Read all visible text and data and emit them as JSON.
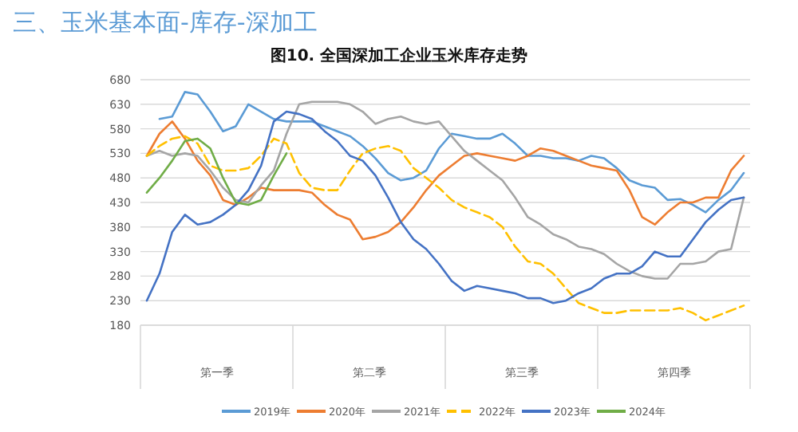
{
  "chart_data": {
    "type": "line",
    "title": "三、玉米基本面-库存-深加工",
    "subtitle": "图10. 全国深加工企业玉米库存走势",
    "categories": [
      null,
      null,
      null,
      null,
      null,
      null,
      null,
      null,
      null,
      null,
      null,
      null,
      null,
      null,
      null,
      null,
      null,
      null,
      null,
      null,
      null,
      null,
      null,
      null,
      null,
      null,
      null,
      null,
      null,
      null,
      null,
      null,
      null,
      null,
      null,
      null,
      null,
      null,
      null,
      null,
      null,
      null,
      null,
      null,
      null,
      null,
      null,
      null
    ],
    "series": [
      {
        "name": "2019年",
        "color": "#5b9bd5",
        "line_style": "solid",
        "values": [
          null,
          600,
          605,
          655,
          650,
          615,
          575,
          585,
          630,
          615,
          600,
          595,
          595,
          595,
          585,
          575,
          565,
          545,
          520,
          490,
          475,
          480,
          495,
          540,
          570,
          565,
          560,
          560,
          570,
          550,
          525,
          525,
          520,
          520,
          515,
          525,
          520,
          500,
          475,
          465,
          460,
          435,
          437,
          425,
          410,
          435,
          455,
          490
        ]
      },
      {
        "name": "2020年",
        "color": "#ed7d31",
        "line_style": "solid",
        "values": [
          525,
          570,
          595,
          560,
          515,
          485,
          435,
          425,
          440,
          460,
          455,
          455,
          455,
          450,
          425,
          405,
          395,
          355,
          360,
          370,
          390,
          420,
          455,
          485,
          505,
          525,
          530,
          525,
          520,
          515,
          525,
          540,
          535,
          525,
          515,
          505,
          500,
          495,
          455,
          400,
          385,
          410,
          430,
          430,
          440,
          440,
          495,
          525
        ]
      },
      {
        "name": "2021年",
        "color": "#a5a5a5",
        "line_style": "solid",
        "values": [
          525,
          535,
          525,
          530,
          525,
          495,
          460,
          435,
          430,
          465,
          495,
          570,
          630,
          635,
          635,
          635,
          630,
          615,
          590,
          600,
          605,
          595,
          590,
          595,
          565,
          535,
          515,
          495,
          475,
          440,
          400,
          385,
          365,
          355,
          340,
          335,
          325,
          305,
          290,
          280,
          275,
          275,
          305,
          305,
          310,
          330,
          335,
          440
        ]
      },
      {
        "name": "2022年",
        "color": "#ffc000",
        "line_style": "dashed",
        "values": [
          525,
          545,
          560,
          565,
          550,
          505,
          495,
          495,
          500,
          525,
          560,
          550,
          490,
          460,
          455,
          455,
          495,
          530,
          540,
          545,
          535,
          500,
          480,
          460,
          435,
          420,
          410,
          400,
          380,
          340,
          310,
          305,
          285,
          255,
          225,
          215,
          205,
          205,
          210,
          210,
          210,
          210,
          215,
          205,
          190,
          200,
          210,
          220
        ]
      },
      {
        "name": "2023年",
        "color": "#4472c4",
        "line_style": "solid",
        "values": [
          230,
          285,
          370,
          405,
          385,
          390,
          405,
          425,
          455,
          505,
          595,
          615,
          610,
          600,
          575,
          555,
          525,
          515,
          485,
          440,
          390,
          355,
          335,
          305,
          270,
          250,
          260,
          255,
          250,
          245,
          235,
          235,
          225,
          230,
          245,
          255,
          275,
          285,
          285,
          300,
          330,
          320,
          320,
          355,
          390,
          415,
          435,
          440
        ]
      },
      {
        "name": "2024年",
        "color": "#70ad47",
        "line_style": "solid",
        "values": [
          450,
          480,
          515,
          555,
          560,
          540,
          480,
          430,
          425,
          435,
          485,
          530,
          null,
          null,
          null,
          null,
          null,
          null,
          null,
          null,
          null,
          null,
          null,
          null,
          null,
          null,
          null,
          null,
          null,
          null,
          null,
          null,
          null,
          null,
          null,
          null,
          null,
          null,
          null,
          null,
          null,
          null,
          null,
          null,
          null,
          null,
          null,
          null
        ]
      }
    ],
    "ylim": [
      180,
      680
    ],
    "yticks": [
      180,
      230,
      280,
      330,
      380,
      430,
      480,
      530,
      580,
      630,
      680
    ],
    "grid": "y",
    "legend": "bottom",
    "annotations": [
      "第一季",
      "第二季",
      "第三季",
      "第四季"
    ]
  }
}
